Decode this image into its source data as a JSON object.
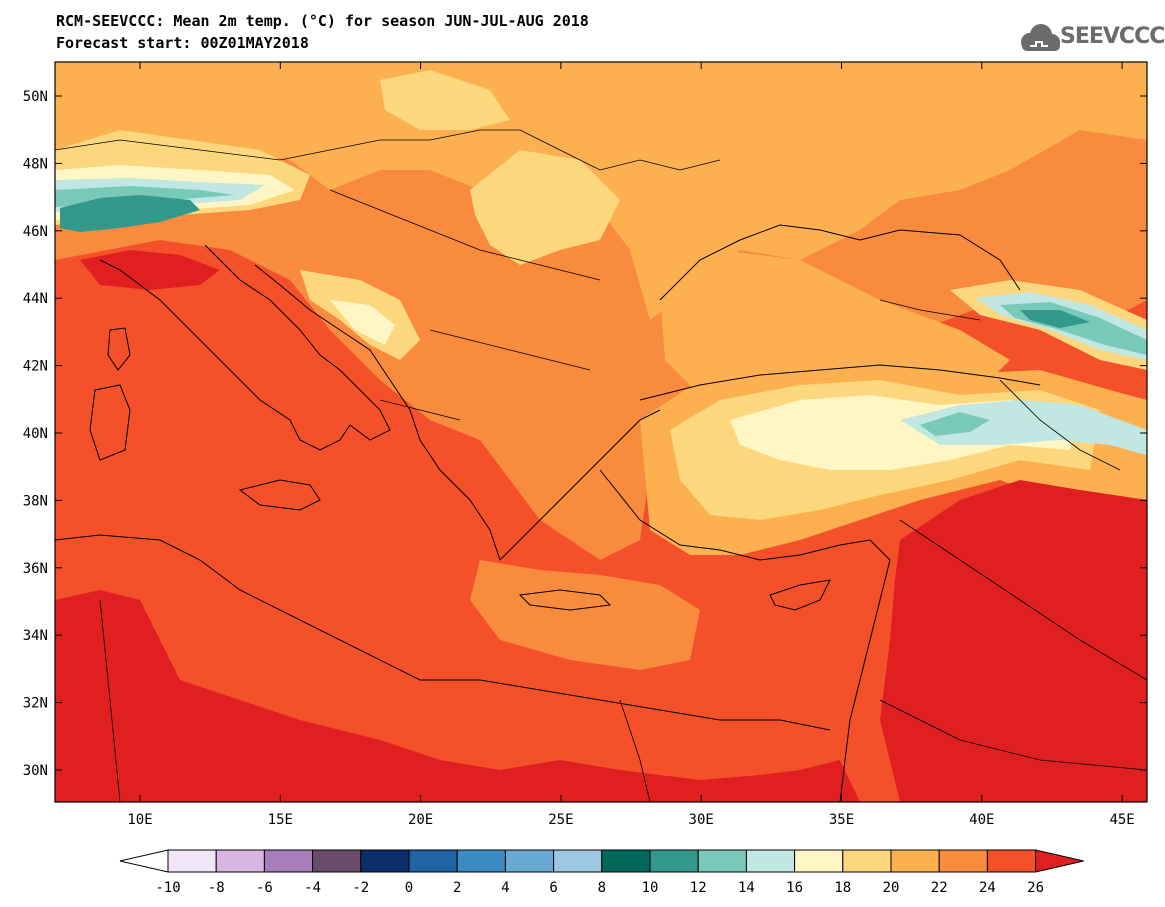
{
  "header": {
    "title_line1": "RCM-SEEVCCC: Mean 2m temp. (°C) for season JUN-JUL-AUG 2018",
    "title_line2": "Forecast start: 00Z01MAY2018",
    "logo_text": "SEEVCCC"
  },
  "map": {
    "lat_labels": [
      "50N",
      "48N",
      "46N",
      "44N",
      "42N",
      "40N",
      "38N",
      "36N",
      "34N",
      "32N",
      "30N"
    ],
    "lon_labels": [
      "10E",
      "15E",
      "20E",
      "25E",
      "30E",
      "35E",
      "40E",
      "45E"
    ],
    "colors": {
      "c18_20": "#fdd77e",
      "c20_22": "#fcb050",
      "c22_24": "#f98b3f",
      "c24_26": "#f4512a",
      "c26_plus": "#e02020",
      "c16_18": "#fff6c3",
      "c14_16": "#c0e7e1",
      "c12_14": "#78c9b9",
      "c10_12": "#33998b"
    }
  },
  "colorbar": {
    "labels": [
      "-10",
      "-8",
      "-6",
      "-4",
      "-2",
      "0",
      "2",
      "4",
      "6",
      "8",
      "10",
      "12",
      "14",
      "16",
      "18",
      "20",
      "22",
      "24",
      "26"
    ],
    "colors": [
      "#f1e6f7",
      "#d9b5e3",
      "#a67db9",
      "#6a4b6b",
      "#0b2e6b",
      "#1e64a7",
      "#3d8bc3",
      "#68aad3",
      "#9cc7e1",
      "#00695c",
      "#33998b",
      "#78c9b9",
      "#c0e7e1",
      "#fff6c3",
      "#fdd77e",
      "#fcb050",
      "#f98b3f",
      "#f4512a"
    ],
    "under_color": "#ffffff",
    "over_color": "#e02020"
  }
}
